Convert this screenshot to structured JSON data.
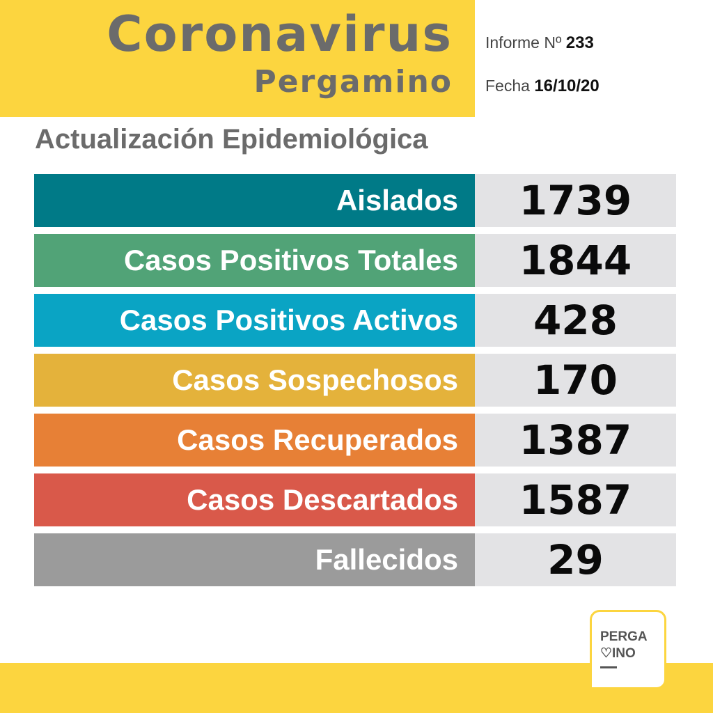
{
  "header": {
    "title": "Coronavirus",
    "subtitle": "Pergamino",
    "report_label": "Informe Nº",
    "report_number": "233",
    "date_label": "Fecha",
    "date_value": "16/10/20"
  },
  "section_title": "Actualización Epidemiológica",
  "stats": [
    {
      "label": "Aislados",
      "value": "1739",
      "color": "#007a87"
    },
    {
      "label": "Casos Positivos Totales",
      "value": "1844",
      "color": "#51a377"
    },
    {
      "label": "Casos Positivos Activos",
      "value": "428",
      "color": "#0aa4c4"
    },
    {
      "label": "Casos Sospechosos",
      "value": "170",
      "color": "#e4b23b"
    },
    {
      "label": "Casos Recuperados",
      "value": "1387",
      "color": "#e78036"
    },
    {
      "label": "Casos Descartados",
      "value": "1587",
      "color": "#d9594a"
    },
    {
      "label": "Fallecidos",
      "value": "29",
      "color": "#9b9b9b"
    }
  ],
  "logo": {
    "line1": "PERGA",
    "line2": "♡INO"
  },
  "colors": {
    "accent_yellow": "#fcd53f",
    "title_gray": "#6b6b6b",
    "value_bg": "#e3e3e5"
  }
}
